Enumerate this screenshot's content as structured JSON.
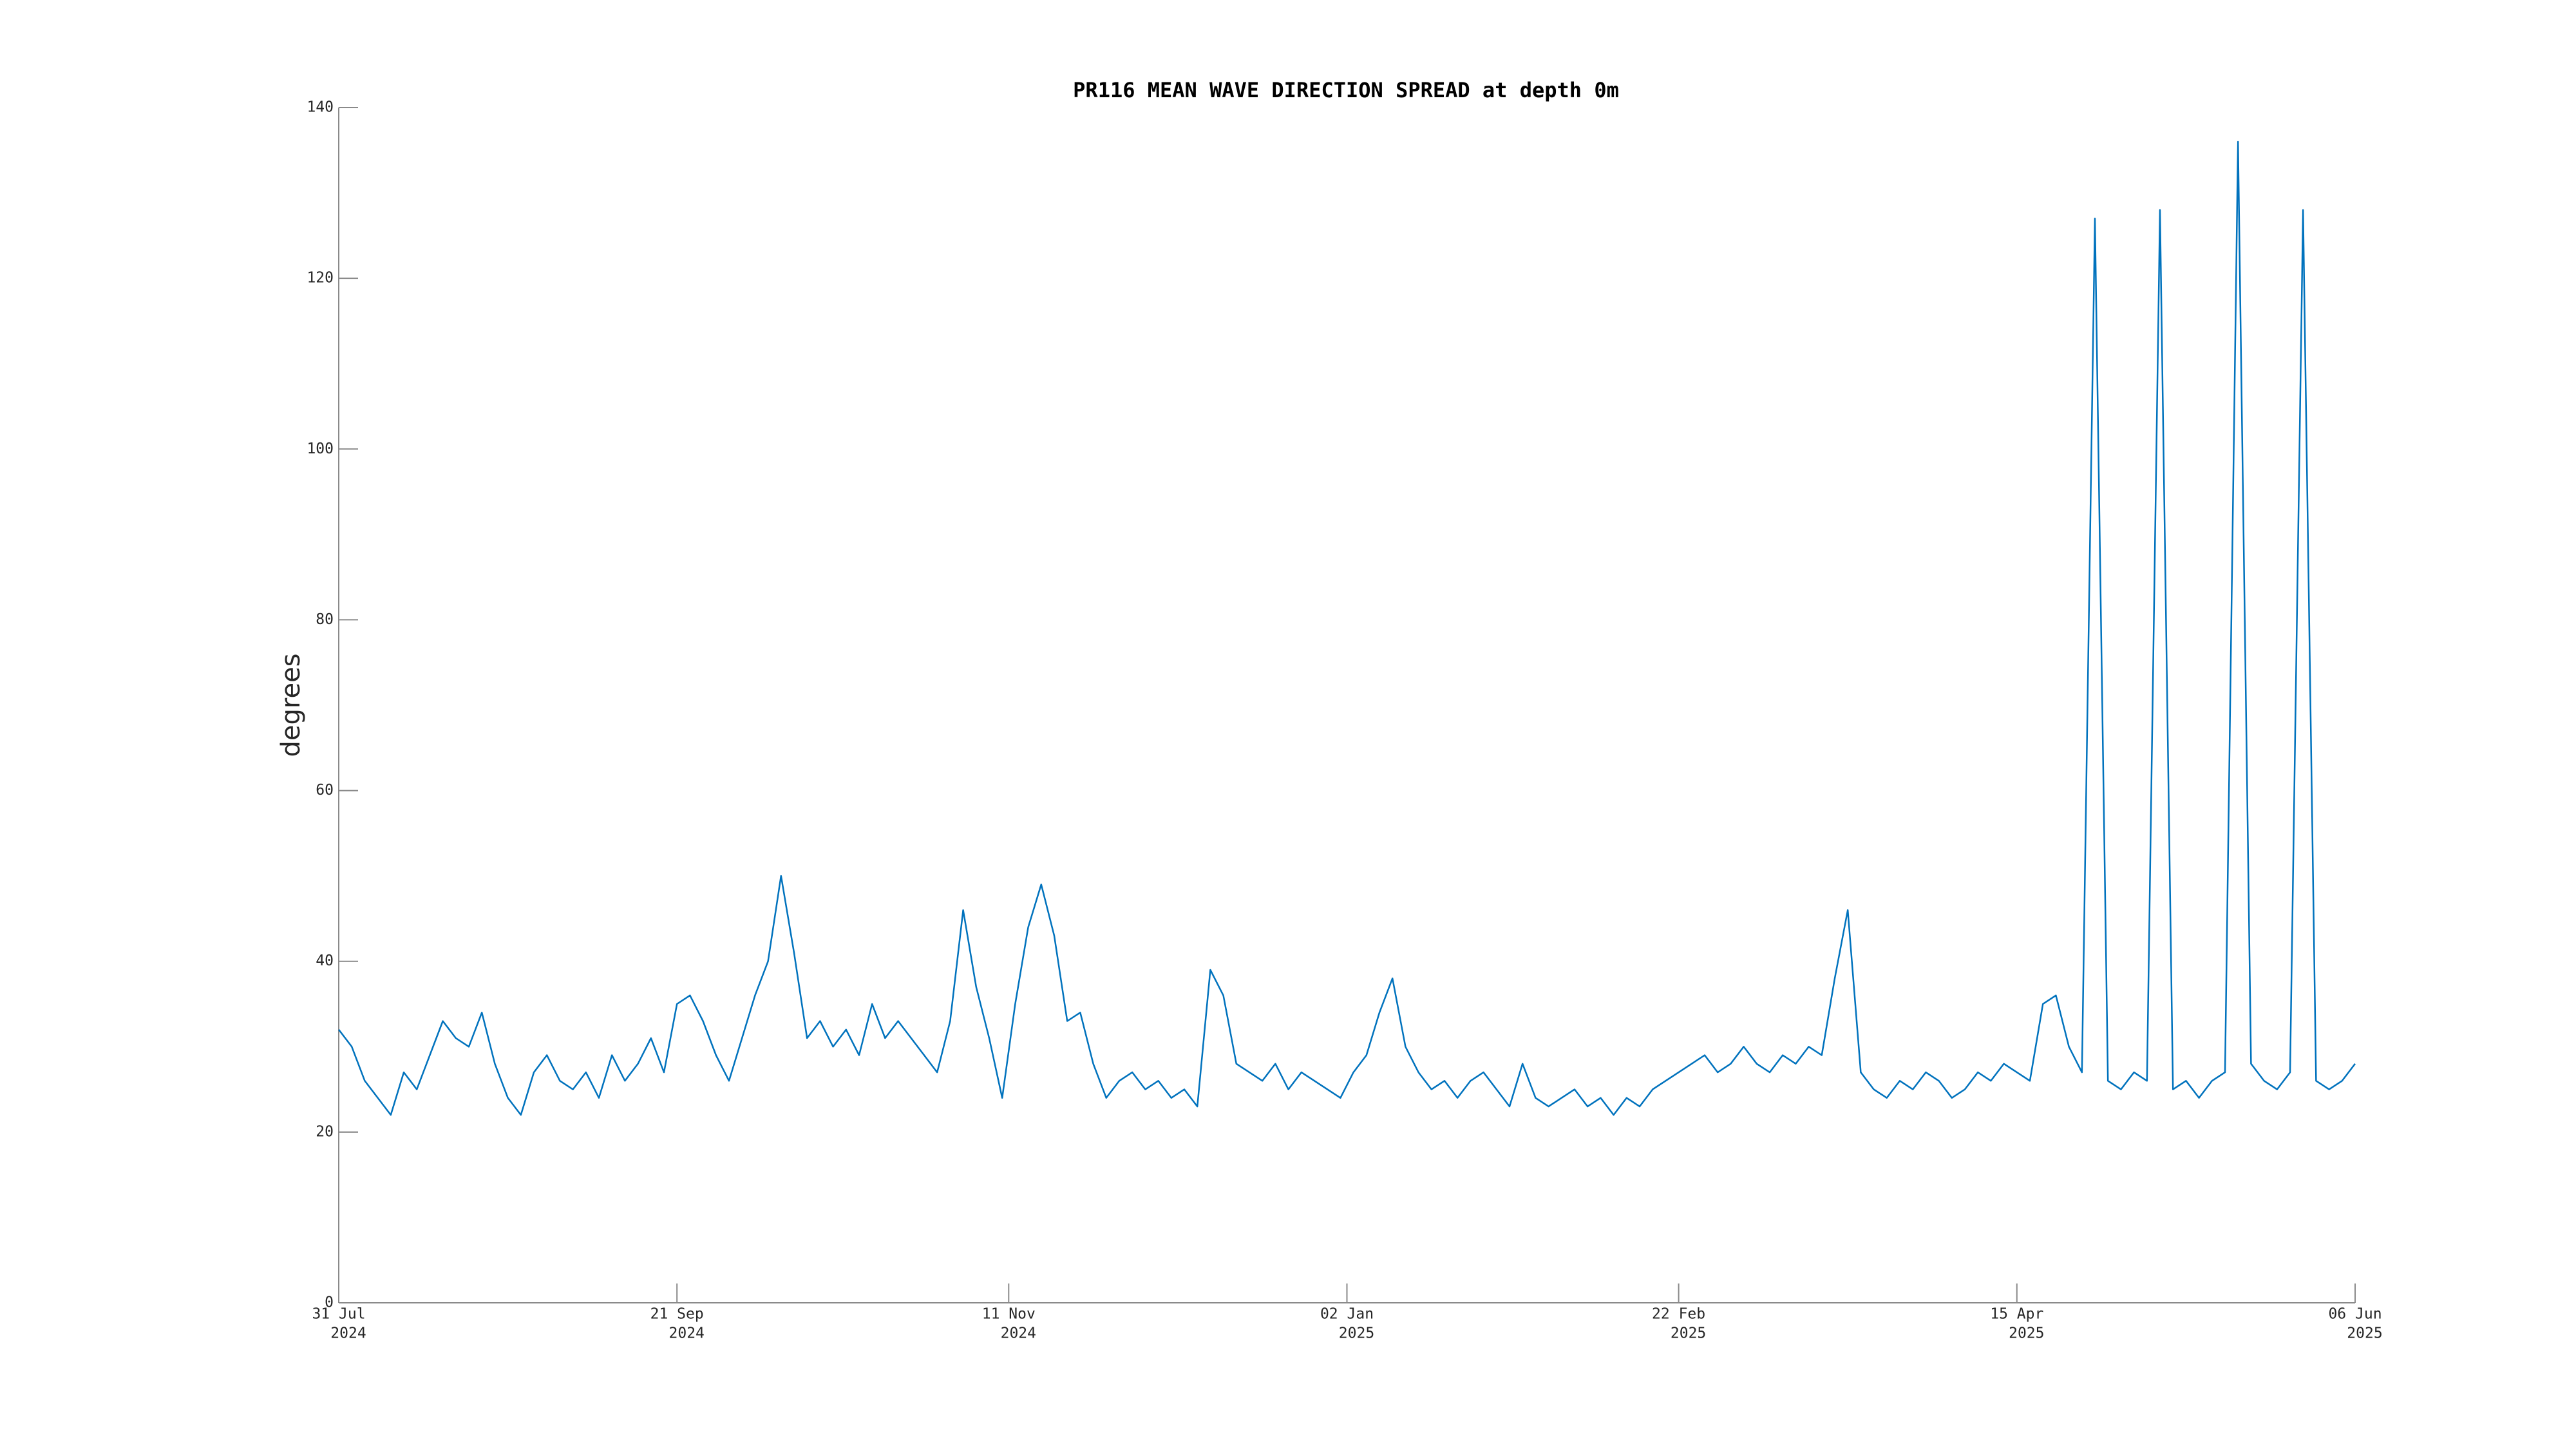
{
  "chart_data": {
    "type": "line",
    "title": "PR116 MEAN WAVE DIRECTION SPREAD at depth 0m",
    "ylabel": "degrees",
    "color": "#0072bd",
    "x": [
      "2024-07-31",
      "2024-08-02",
      "2024-08-04",
      "2024-08-06",
      "2024-08-08",
      "2024-08-10",
      "2024-08-12",
      "2024-08-14",
      "2024-08-16",
      "2024-08-18",
      "2024-08-20",
      "2024-08-22",
      "2024-08-24",
      "2024-08-26",
      "2024-08-28",
      "2024-08-30",
      "2024-09-01",
      "2024-09-03",
      "2024-09-05",
      "2024-09-07",
      "2024-09-09",
      "2024-09-11",
      "2024-09-13",
      "2024-09-15",
      "2024-09-17",
      "2024-09-19",
      "2024-09-21",
      "2024-09-23",
      "2024-09-25",
      "2024-09-27",
      "2024-09-29",
      "2024-10-01",
      "2024-10-03",
      "2024-10-05",
      "2024-10-07",
      "2024-10-09",
      "2024-10-11",
      "2024-10-13",
      "2024-10-15",
      "2024-10-17",
      "2024-10-19",
      "2024-10-21",
      "2024-10-23",
      "2024-10-25",
      "2024-10-27",
      "2024-10-29",
      "2024-10-31",
      "2024-11-02",
      "2024-11-04",
      "2024-11-06",
      "2024-11-08",
      "2024-11-10",
      "2024-11-12",
      "2024-11-14",
      "2024-11-16",
      "2024-11-18",
      "2024-11-20",
      "2024-11-22",
      "2024-11-24",
      "2024-11-26",
      "2024-11-28",
      "2024-11-30",
      "2024-12-02",
      "2024-12-04",
      "2024-12-06",
      "2024-12-08",
      "2024-12-10",
      "2024-12-12",
      "2024-12-14",
      "2024-12-16",
      "2024-12-18",
      "2024-12-20",
      "2024-12-22",
      "2024-12-24",
      "2024-12-26",
      "2024-12-28",
      "2024-12-30",
      "2025-01-01",
      "2025-01-03",
      "2025-01-05",
      "2025-01-07",
      "2025-01-09",
      "2025-01-11",
      "2025-01-13",
      "2025-01-15",
      "2025-01-17",
      "2025-01-19",
      "2025-01-21",
      "2025-01-23",
      "2025-01-25",
      "2025-01-27",
      "2025-01-29",
      "2025-01-31",
      "2025-02-02",
      "2025-02-04",
      "2025-02-06",
      "2025-02-08",
      "2025-02-10",
      "2025-02-12",
      "2025-02-14",
      "2025-02-16",
      "2025-02-18",
      "2025-02-20",
      "2025-02-22",
      "2025-02-24",
      "2025-02-26",
      "2025-02-28",
      "2025-03-02",
      "2025-03-04",
      "2025-03-06",
      "2025-03-08",
      "2025-03-10",
      "2025-03-12",
      "2025-03-14",
      "2025-03-16",
      "2025-03-18",
      "2025-03-20",
      "2025-03-22",
      "2025-03-24",
      "2025-03-26",
      "2025-03-28",
      "2025-03-30",
      "2025-04-01",
      "2025-04-03",
      "2025-04-05",
      "2025-04-07",
      "2025-04-09",
      "2025-04-11",
      "2025-04-13",
      "2025-04-15",
      "2025-04-17",
      "2025-04-19",
      "2025-04-21",
      "2025-04-23",
      "2025-04-25",
      "2025-04-27",
      "2025-04-29",
      "2025-05-01",
      "2025-05-03",
      "2025-05-05",
      "2025-05-07",
      "2025-05-09",
      "2025-05-11",
      "2025-05-13",
      "2025-05-15",
      "2025-05-17",
      "2025-05-19",
      "2025-05-21",
      "2025-05-23",
      "2025-05-25",
      "2025-05-27",
      "2025-05-29",
      "2025-05-31",
      "2025-06-02",
      "2025-06-04",
      "2025-06-06"
    ],
    "values": [
      32,
      30,
      26,
      24,
      22,
      27,
      25,
      29,
      33,
      31,
      30,
      34,
      28,
      24,
      22,
      27,
      29,
      26,
      25,
      27,
      24,
      29,
      26,
      28,
      31,
      27,
      35,
      36,
      33,
      29,
      26,
      31,
      36,
      40,
      50,
      41,
      31,
      33,
      30,
      32,
      29,
      35,
      31,
      33,
      31,
      29,
      27,
      33,
      46,
      37,
      31,
      24,
      35,
      44,
      49,
      43,
      33,
      34,
      28,
      24,
      26,
      27,
      25,
      26,
      24,
      25,
      23,
      39,
      36,
      28,
      27,
      26,
      28,
      25,
      27,
      26,
      25,
      24,
      27,
      29,
      34,
      38,
      30,
      27,
      25,
      26,
      24,
      26,
      27,
      25,
      23,
      28,
      24,
      23,
      24,
      25,
      23,
      24,
      22,
      24,
      23,
      25,
      26,
      27,
      28,
      29,
      27,
      28,
      30,
      28,
      27,
      29,
      28,
      30,
      29,
      38,
      46,
      27,
      25,
      24,
      26,
      25,
      27,
      26,
      24,
      25,
      27,
      26,
      28,
      27,
      26,
      35,
      36,
      30,
      27,
      127,
      26,
      25,
      27,
      26,
      128,
      25,
      26,
      24,
      26,
      27,
      136,
      28,
      26,
      25,
      27,
      128,
      26,
      25,
      26,
      28
    ],
    "xlim": [
      "2024-07-31",
      "2025-06-06"
    ],
    "xticks": [
      {
        "value": "2024-07-31",
        "label": [
          "31 Jul",
          "2024"
        ]
      },
      {
        "value": "2024-09-21",
        "label": [
          "21 Sep",
          "2024"
        ]
      },
      {
        "value": "2024-11-11",
        "label": [
          "11 Nov",
          "2024"
        ]
      },
      {
        "value": "2025-01-02",
        "label": [
          "02 Jan",
          "2025"
        ]
      },
      {
        "value": "2025-02-22",
        "label": [
          "22 Feb",
          "2025"
        ]
      },
      {
        "value": "2025-04-15",
        "label": [
          "15 Apr",
          "2025"
        ]
      },
      {
        "value": "2025-06-06",
        "label": [
          "06 Jun",
          "2025"
        ]
      }
    ],
    "ylim": [
      0,
      140
    ],
    "yticks": [
      0,
      20,
      40,
      60,
      80,
      100,
      120,
      140
    ],
    "grid": false
  }
}
